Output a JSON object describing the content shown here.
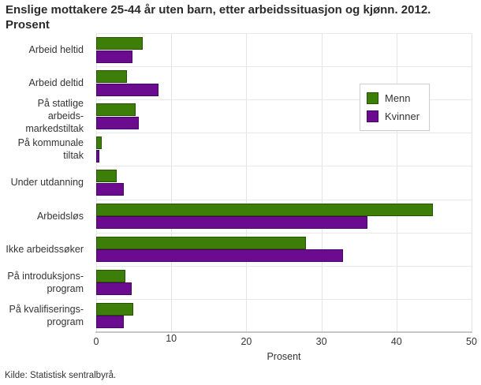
{
  "title": {
    "line1": "Enslige mottakere 25-44 år uten barn, etter arbeidssituasjon og kjønn. 2012.",
    "line2": "Prosent"
  },
  "source": "Kilde: Statistisk sentralbyrå.",
  "colors": {
    "menn": "#3c7e08",
    "kvinner": "#6b0c90",
    "gridline": "#e6e6e6",
    "axis_line": "#c6c6c6"
  },
  "chart_data": {
    "type": "bar",
    "orientation": "horizontal",
    "title": "Enslige mottakere 25-44 år uten barn, etter arbeidssituasjon og kjønn. 2012. Prosent",
    "categories": [
      "Arbeid heltid",
      "Arbeid deltid",
      "På statlige arbeids-\nmarkedstiltak",
      "På kommunale\ntiltak",
      "Under utdanning",
      "Arbeidsløs",
      "Ikke arbeidssøker",
      "På introduksjons-\nprogram",
      "På kvalifiserings-\nprogram"
    ],
    "series": [
      {
        "name": "Menn",
        "color": "#3c7e08",
        "values": [
          6.2,
          4.1,
          5.2,
          0.7,
          2.7,
          44.9,
          27.9,
          3.9,
          4.9
        ]
      },
      {
        "name": "Kvinner",
        "color": "#6b0c90",
        "values": [
          4.8,
          8.3,
          5.7,
          0.4,
          3.7,
          36.1,
          32.9,
          4.7,
          3.7
        ]
      }
    ],
    "xlabel": "Prosent",
    "xlim": [
      0,
      50
    ],
    "xticks": [
      0,
      10,
      20,
      30,
      40,
      50
    ],
    "grid": true,
    "legend_position": "top-right-inside"
  }
}
